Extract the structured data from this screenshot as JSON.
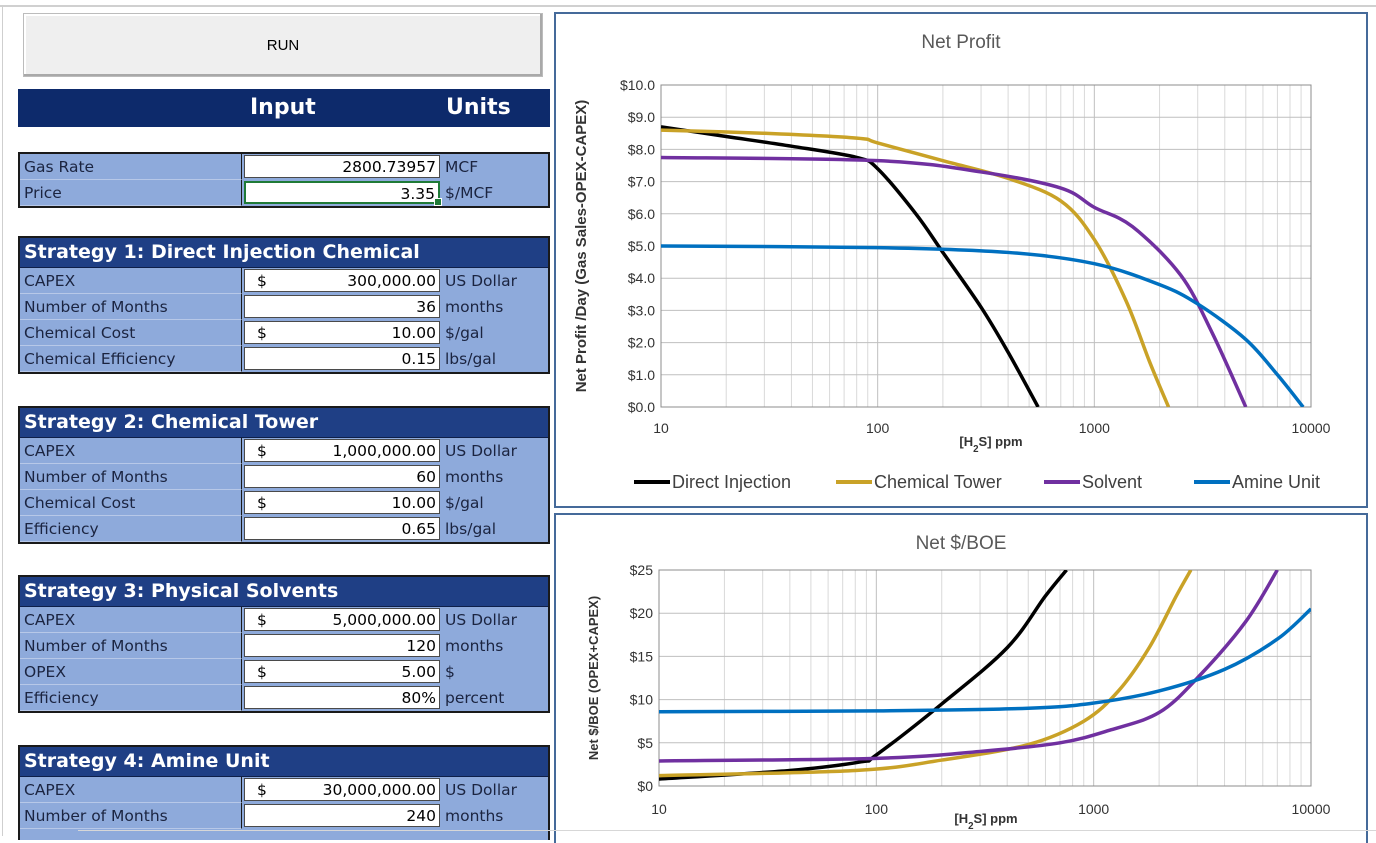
{
  "run_button": {
    "label": "RUN"
  },
  "header": {
    "input": "Input",
    "units": "Units"
  },
  "gas_inputs": [
    {
      "label": "Gas Rate",
      "currency": "",
      "value": "2800.73957",
      "unit": "MCF"
    },
    {
      "label": "Price",
      "currency": "",
      "value": "3.35",
      "unit": "$/MCF"
    }
  ],
  "strategies": [
    {
      "title": "Strategy 1: Direct Injection Chemical",
      "rows": [
        {
          "label": "CAPEX",
          "currency": "$",
          "value": "300,000.00",
          "unit": "US Dollar"
        },
        {
          "label": "Number of Months",
          "currency": "",
          "value": "36",
          "unit": "months"
        },
        {
          "label": "Chemical Cost",
          "currency": "$",
          "value": "10.00",
          "unit": "$/gal"
        },
        {
          "label": "Chemical Efficiency",
          "currency": "",
          "value": "0.15",
          "unit": "lbs/gal"
        }
      ]
    },
    {
      "title": "Strategy 2: Chemical Tower",
      "rows": [
        {
          "label": "CAPEX",
          "currency": "$",
          "value": "1,000,000.00",
          "unit": "US Dollar"
        },
        {
          "label": "Number of Months",
          "currency": "",
          "value": "60",
          "unit": "months"
        },
        {
          "label": "Chemical Cost",
          "currency": "$",
          "value": "10.00",
          "unit": "$/gal"
        },
        {
          "label": "Efficiency",
          "currency": "",
          "value": "0.65",
          "unit": "lbs/gal"
        }
      ]
    },
    {
      "title": "Strategy 3: Physical Solvents",
      "rows": [
        {
          "label": "CAPEX",
          "currency": "$",
          "value": "5,000,000.00",
          "unit": "US Dollar"
        },
        {
          "label": "Number of Months",
          "currency": "",
          "value": "120",
          "unit": "months"
        },
        {
          "label": "OPEX",
          "currency": "$",
          "value": "5.00",
          "unit": "$"
        },
        {
          "label": "Efficiency",
          "currency": "",
          "value": "80%",
          "unit": "percent"
        }
      ]
    },
    {
      "title": "Strategy 4: Amine Unit",
      "rows": [
        {
          "label": "CAPEX",
          "currency": "$",
          "value": "30,000,000.00",
          "unit": "US Dollar"
        },
        {
          "label": "Number of Months",
          "currency": "",
          "value": "240",
          "unit": "months"
        }
      ]
    }
  ],
  "colors": {
    "direct": "#000000",
    "tower": "#c9a227",
    "solvent": "#7030a0",
    "amine": "#0070c0"
  },
  "chart_data": [
    {
      "type": "line",
      "title": "Net Profit",
      "xlabel": "[H2S] ppm",
      "ylabel": "Net Profit /Day (Gas Sales-OPEX-CAPEX)",
      "x_scale": "log",
      "xlim": [
        10,
        10000
      ],
      "ylim": [
        0,
        10
      ],
      "x_ticks": [
        "10",
        "100",
        "1000",
        "10000"
      ],
      "y_ticks": [
        "$0.0",
        "$1.0",
        "$2.0",
        "$3.0",
        "$4.0",
        "$5.0",
        "$6.0",
        "$7.0",
        "$8.0",
        "$9.0",
        "$10.0"
      ],
      "grid": true,
      "legend": "bottom",
      "series": [
        {
          "name": "Direct Injection",
          "color": "#000000",
          "points": [
            [
              10,
              8.7
            ],
            [
              20,
              8.4
            ],
            [
              40,
              8.1
            ],
            [
              80,
              7.75
            ],
            [
              100,
              7.4
            ],
            [
              150,
              6.0
            ],
            [
              200,
              4.8
            ],
            [
              300,
              3.1
            ],
            [
              400,
              1.7
            ],
            [
              550,
              0.0
            ]
          ]
        },
        {
          "name": "Chemical Tower",
          "color": "#c9a227",
          "points": [
            [
              10,
              8.6
            ],
            [
              30,
              8.5
            ],
            [
              80,
              8.35
            ],
            [
              100,
              8.2
            ],
            [
              200,
              7.65
            ],
            [
              400,
              7.1
            ],
            [
              700,
              6.4
            ],
            [
              1000,
              5.2
            ],
            [
              1400,
              3.3
            ],
            [
              1800,
              1.4
            ],
            [
              2200,
              0.0
            ]
          ]
        },
        {
          "name": "Solvent",
          "color": "#7030a0",
          "points": [
            [
              10,
              7.75
            ],
            [
              100,
              7.65
            ],
            [
              300,
              7.3
            ],
            [
              700,
              6.8
            ],
            [
              1000,
              6.2
            ],
            [
              1500,
              5.6
            ],
            [
              2500,
              4.1
            ],
            [
              3500,
              2.3
            ],
            [
              5000,
              0.0
            ]
          ]
        },
        {
          "name": "Amine Unit",
          "color": "#0070c0",
          "points": [
            [
              10,
              5.0
            ],
            [
              100,
              4.95
            ],
            [
              400,
              4.8
            ],
            [
              1000,
              4.45
            ],
            [
              2000,
              3.8
            ],
            [
              3000,
              3.2
            ],
            [
              5000,
              2.1
            ],
            [
              7000,
              1.0
            ],
            [
              9200,
              0.0
            ]
          ]
        }
      ]
    },
    {
      "type": "line",
      "title": "Net $/BOE",
      "xlabel": "[H2S] ppm",
      "ylabel": "Net $/BOE (OPEX+CAPEX)",
      "x_scale": "log",
      "xlim": [
        10,
        10000
      ],
      "ylim": [
        0,
        25
      ],
      "x_ticks": [
        "10",
        "100",
        "1000",
        "10000"
      ],
      "y_ticks": [
        "$0",
        "$5",
        "$10",
        "$15",
        "$20",
        "$25"
      ],
      "grid": true,
      "series": [
        {
          "name": "Direct Injection",
          "color": "#000000",
          "points": [
            [
              10,
              0.8
            ],
            [
              40,
              1.8
            ],
            [
              85,
              2.8
            ],
            [
              100,
              3.6
            ],
            [
              200,
              9.5
            ],
            [
              400,
              16.0
            ],
            [
              600,
              22.0
            ],
            [
              750,
              25.0
            ]
          ]
        },
        {
          "name": "Chemical Tower",
          "color": "#c9a227",
          "points": [
            [
              10,
              1.2
            ],
            [
              80,
              1.8
            ],
            [
              200,
              3.0
            ],
            [
              500,
              4.8
            ],
            [
              900,
              7.5
            ],
            [
              1300,
              11.0
            ],
            [
              1800,
              16.0
            ],
            [
              2400,
              22.0
            ],
            [
              2800,
              25.0
            ]
          ]
        },
        {
          "name": "Solvent",
          "color": "#7030a0",
          "points": [
            [
              10,
              2.9
            ],
            [
              100,
              3.2
            ],
            [
              300,
              4.0
            ],
            [
              700,
              5.0
            ],
            [
              1200,
              6.5
            ],
            [
              2000,
              8.5
            ],
            [
              3000,
              12.5
            ],
            [
              5000,
              19.0
            ],
            [
              7000,
              25.0
            ]
          ]
        },
        {
          "name": "Amine Unit",
          "color": "#0070c0",
          "points": [
            [
              10,
              8.6
            ],
            [
              100,
              8.7
            ],
            [
              500,
              9.0
            ],
            [
              1000,
              9.6
            ],
            [
              2000,
              11.0
            ],
            [
              4000,
              13.5
            ],
            [
              7000,
              17.0
            ],
            [
              10000,
              20.5
            ]
          ]
        }
      ]
    }
  ]
}
